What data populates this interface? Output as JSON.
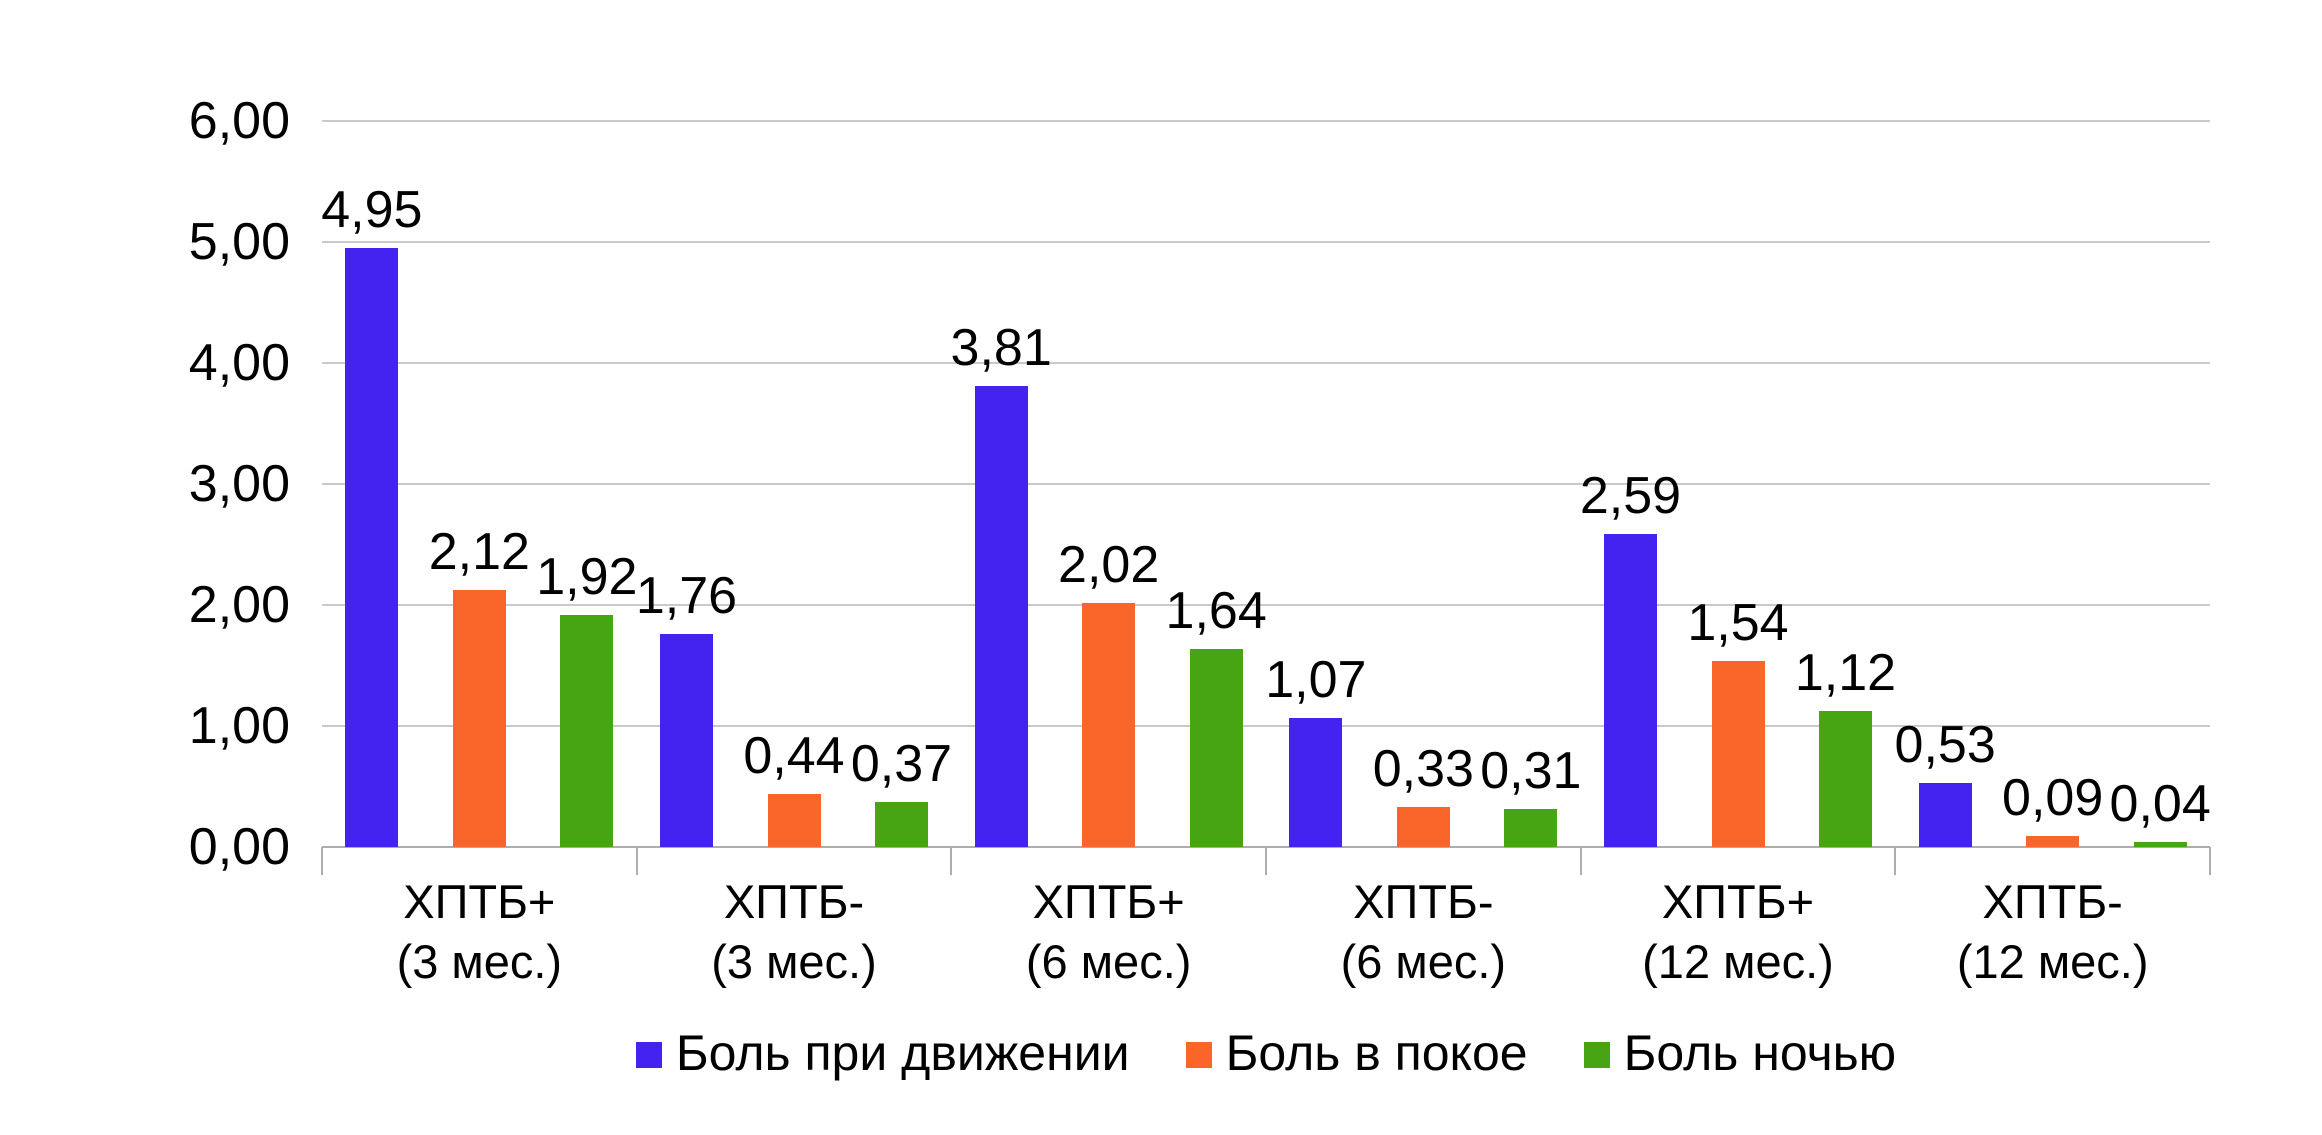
{
  "chart_data": {
    "type": "bar",
    "title": "",
    "xlabel": "",
    "ylabel": "",
    "categories": [
      {
        "line1": "ХПТБ+",
        "line2": "(3 мес.)"
      },
      {
        "line1": "ХПТБ-",
        "line2": "(3 мес.)"
      },
      {
        "line1": "ХПТБ+",
        "line2": "(6 мес.)"
      },
      {
        "line1": "ХПТБ-",
        "line2": "(6 мес.)"
      },
      {
        "line1": "ХПТБ+",
        "line2": "(12 мес.)"
      },
      {
        "line1": "ХПТБ-",
        "line2": "(12 мес.)"
      }
    ],
    "series": [
      {
        "name": "Боль при движении",
        "color": "#4423f0",
        "values": [
          4.95,
          1.76,
          3.81,
          1.07,
          2.59,
          0.53
        ],
        "labels": [
          "4,95",
          "1,76",
          "3,81",
          "1,07",
          "2,59",
          "0,53"
        ]
      },
      {
        "name": "Боль в покое",
        "color": "#fa662a",
        "values": [
          2.12,
          0.44,
          2.02,
          0.33,
          1.54,
          0.09
        ],
        "labels": [
          "2,12",
          "0,44",
          "2,02",
          "0,33",
          "1,54",
          "0,09"
        ]
      },
      {
        "name": "Боль ночью",
        "color": "#47a412",
        "values": [
          1.92,
          0.37,
          1.64,
          0.31,
          1.12,
          0.04
        ],
        "labels": [
          "1,92",
          "0,37",
          "1,64",
          "0,31",
          "1,12",
          "0,04"
        ]
      }
    ],
    "yticks": [
      "0,00",
      "1,00",
      "2,00",
      "3,00",
      "4,00",
      "5,00",
      "6,00"
    ],
    "ylim": [
      0,
      6
    ],
    "grid": true,
    "legend_position": "bottom"
  },
  "style": {
    "background": "#ffffff",
    "text_color": "#000000",
    "gridline_color": "#c9c9c9",
    "axis_color": "#adadad"
  }
}
